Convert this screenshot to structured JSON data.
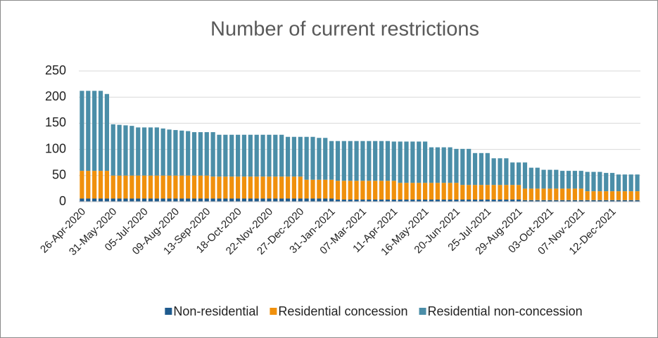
{
  "chart_data": {
    "type": "stacked_bar",
    "title": "Number of current restrictions",
    "categories": [
      "26-Apr-2020",
      null,
      null,
      null,
      null,
      "31-May-2020",
      null,
      null,
      null,
      null,
      "05-Jul-2020",
      null,
      null,
      null,
      null,
      "09-Aug-2020",
      null,
      null,
      null,
      null,
      "13-Sep-2020",
      null,
      null,
      null,
      null,
      "18-Oct-2020",
      null,
      null,
      null,
      null,
      "22-Nov-2020",
      null,
      null,
      null,
      null,
      "27-Dec-2020",
      null,
      null,
      null,
      null,
      "31-Jan-2021",
      null,
      null,
      null,
      null,
      "07-Mar-2021",
      null,
      null,
      null,
      null,
      "11-Apr-2021",
      null,
      null,
      null,
      null,
      "16-May-2021",
      null,
      null,
      null,
      null,
      "20-Jun-2021",
      null,
      null,
      null,
      null,
      "25-Jul-2021",
      null,
      null,
      null,
      null,
      "29-Aug-2021",
      null,
      null,
      null,
      null,
      "03-Oct-2021",
      null,
      null,
      null,
      null,
      "07-Nov-2021",
      null,
      null,
      null,
      null,
      "12-Dec-2021",
      null,
      null,
      null,
      null
    ],
    "series": [
      {
        "name": "Non-residential",
        "color": "#1f5b8e",
        "values": [
          6,
          6,
          6,
          6,
          6,
          6,
          6,
          6,
          6,
          6,
          6,
          6,
          6,
          6,
          6,
          6,
          6,
          6,
          6,
          6,
          6,
          6,
          6,
          6,
          6,
          6,
          6,
          6,
          6,
          6,
          6,
          6,
          6,
          6,
          6,
          6,
          6,
          6,
          6,
          6,
          6,
          4,
          4,
          4,
          4,
          4,
          4,
          4,
          4,
          4,
          4,
          4,
          4,
          4,
          4,
          4,
          4,
          4,
          4,
          4,
          4,
          4,
          4,
          4,
          4,
          4,
          4,
          4,
          4,
          4,
          4,
          3,
          3,
          3,
          3,
          3,
          3,
          3,
          3,
          3,
          3,
          3,
          3,
          3,
          3,
          3,
          3,
          3,
          3,
          3
        ]
      },
      {
        "name": "Residential concession",
        "color": "#f0900c",
        "values": [
          53,
          53,
          53,
          53,
          53,
          44,
          44,
          44,
          44,
          44,
          44,
          44,
          44,
          44,
          44,
          44,
          44,
          44,
          44,
          44,
          44,
          42,
          42,
          42,
          42,
          42,
          42,
          42,
          42,
          42,
          42,
          42,
          42,
          42,
          42,
          42,
          36,
          36,
          36,
          36,
          36,
          36,
          36,
          36,
          36,
          36,
          36,
          36,
          36,
          36,
          36,
          32,
          32,
          32,
          32,
          32,
          32,
          32,
          32,
          32,
          32,
          28,
          28,
          28,
          28,
          28,
          28,
          28,
          28,
          28,
          28,
          22,
          22,
          22,
          22,
          22,
          22,
          22,
          22,
          22,
          22,
          17,
          17,
          17,
          17,
          17,
          17,
          17,
          17,
          17
        ]
      },
      {
        "name": "Residential non-concession",
        "color": "#4b8ea8",
        "values": [
          153,
          153,
          153,
          153,
          147,
          98,
          97,
          96,
          95,
          92,
          92,
          92,
          92,
          90,
          88,
          87,
          86,
          85,
          83,
          83,
          83,
          85,
          80,
          80,
          80,
          80,
          80,
          80,
          80,
          80,
          80,
          80,
          80,
          76,
          76,
          76,
          82,
          82,
          80,
          80,
          74,
          76,
          76,
          76,
          76,
          76,
          76,
          76,
          76,
          76,
          75,
          79,
          79,
          79,
          79,
          79,
          68,
          68,
          68,
          68,
          65,
          69,
          69,
          61,
          61,
          61,
          51,
          51,
          51,
          43,
          43,
          50,
          40,
          40,
          36,
          36,
          36,
          34,
          34,
          34,
          34,
          37,
          37,
          37,
          35,
          35,
          32,
          32,
          32,
          32
        ]
      }
    ],
    "ylim": [
      0,
      250
    ],
    "yticks": [
      0,
      50,
      100,
      150,
      200,
      250
    ],
    "grid": true,
    "legend": "bottom"
  }
}
